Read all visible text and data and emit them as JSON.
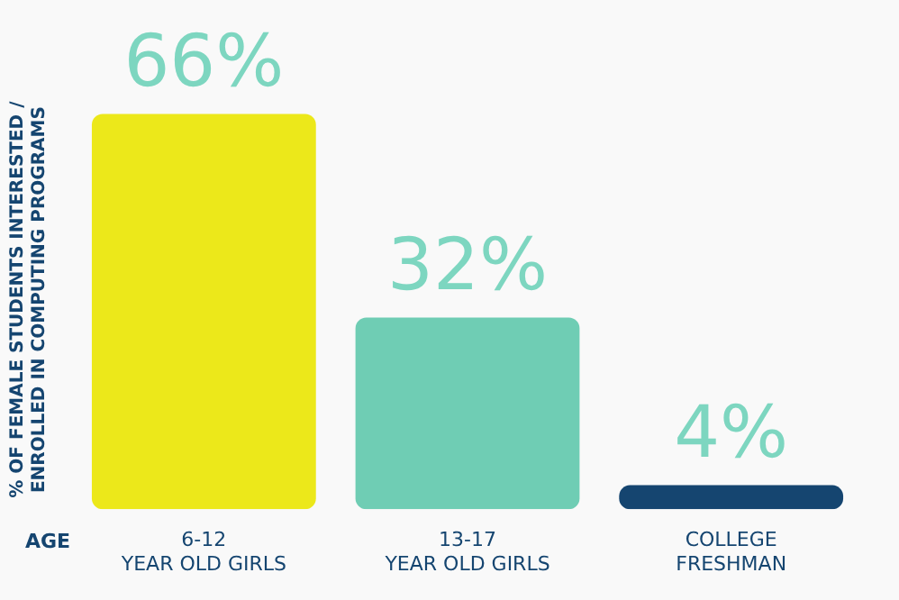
{
  "chart_data": {
    "type": "bar",
    "ylabel": "% OF FEMALE STUDENTS INTERESTED /\nENROLLED IN COMPUTING PROGRAMS",
    "xlabel": "AGE",
    "categories": [
      "6-12\nYEAR OLD GIRLS",
      "13-17\nYEAR OLD GIRLS",
      "COLLEGE\nFRESHMAN"
    ],
    "values": [
      66,
      32,
      4
    ],
    "colors": [
      "#ece81a",
      "#6fcdb4",
      "#154570"
    ],
    "value_labels": [
      "66%",
      "32%",
      "4%"
    ]
  }
}
